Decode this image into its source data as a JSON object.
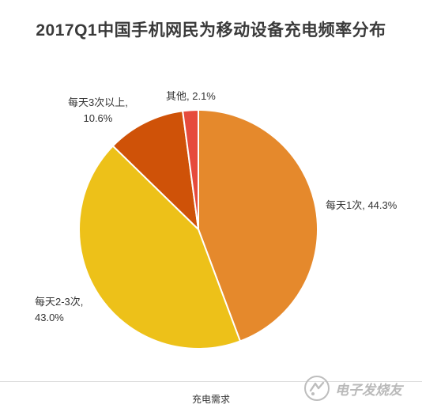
{
  "chart_data": {
    "type": "pie",
    "title": "2017Q1中国手机网民为移动设备充电频率分布",
    "start_angle_deg": 0,
    "direction": "clockwise",
    "slices": [
      {
        "label": "每天1次, 44.3%",
        "value": 44.3,
        "color": "#e5892c"
      },
      {
        "label": "每天2-3次, 43.0%",
        "value": 43.0,
        "color": "#edc119"
      },
      {
        "label": "每天3次以上, 10.6%",
        "value": 10.6,
        "color": "#cf5208"
      },
      {
        "label": "其他, 2.1%",
        "value": 2.1,
        "color": "#e64b3c"
      }
    ]
  },
  "labels": {
    "slice1": "每天1次, 44.3%",
    "slice2_line1": "每天2-3次,",
    "slice2_line2": "43.0%",
    "slice3_line1": "每天3次以上,",
    "slice3_line2": "10.6%",
    "slice4": "其他, 2.1%"
  },
  "caption": "充电需求",
  "watermark": {
    "text": "电子发烧友",
    "icon": "electronic-enthusiast-logo-icon"
  }
}
